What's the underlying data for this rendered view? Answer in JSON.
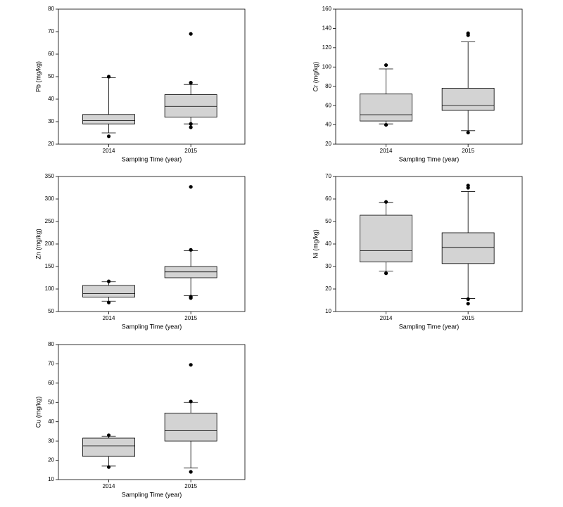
{
  "chart_data": [
    {
      "type": "box",
      "ylabel": "Pb (mg/kg)",
      "xlabel": "Sampling Time (year)",
      "categories": [
        "2014",
        "2015"
      ],
      "color": "#d3d3d3",
      "ylim": [
        20,
        80
      ],
      "yticks": [
        20,
        30,
        40,
        50,
        60,
        70,
        80
      ],
      "boxes": [
        {
          "whisker_low": 25,
          "q1": 29,
          "median": 30.5,
          "q3": 33.2,
          "whisker_high": 49.5,
          "outliers": [
            23.5,
            50
          ]
        },
        {
          "whisker_low": 29,
          "q1": 32,
          "median": 36.8,
          "q3": 42,
          "whisker_high": 46.5,
          "outliers": [
            27.5,
            29,
            47.3,
            69
          ]
        }
      ]
    },
    {
      "type": "box",
      "ylabel": "Cr (mg/kg)",
      "xlabel": "Sampling Time (year)",
      "categories": [
        "2014",
        "2015"
      ],
      "color": "#d3d3d3",
      "ylim": [
        20,
        160
      ],
      "yticks": [
        20,
        40,
        60,
        80,
        100,
        120,
        140,
        160
      ],
      "boxes": [
        {
          "whisker_low": 41,
          "q1": 44,
          "median": 50.5,
          "q3": 72,
          "whisker_high": 98,
          "outliers": [
            40,
            102
          ]
        },
        {
          "whisker_low": 34,
          "q1": 55,
          "median": 60,
          "q3": 78,
          "whisker_high": 126,
          "outliers": [
            32,
            133,
            135
          ]
        }
      ]
    },
    {
      "type": "box",
      "ylabel": "Zn (mg/kg)",
      "xlabel": "Sampling Time (year)",
      "categories": [
        "2014",
        "2015"
      ],
      "color": "#d3d3d3",
      "ylim": [
        50,
        350
      ],
      "yticks": [
        50,
        100,
        150,
        200,
        250,
        300,
        350
      ],
      "boxes": [
        {
          "whisker_low": 73,
          "q1": 82,
          "median": 90,
          "q3": 108,
          "whisker_high": 116,
          "outliers": [
            70,
            117
          ]
        },
        {
          "whisker_low": 85,
          "q1": 125,
          "median": 138,
          "q3": 150,
          "whisker_high": 185,
          "outliers": [
            80,
            83,
            187,
            327
          ]
        }
      ]
    },
    {
      "type": "box",
      "ylabel": "Ni (mg/kg)",
      "xlabel": "Sampling Time (year)",
      "categories": [
        "2014",
        "2015"
      ],
      "color": "#d3d3d3",
      "ylim": [
        10,
        70
      ],
      "yticks": [
        10,
        20,
        30,
        40,
        50,
        60,
        70
      ],
      "boxes": [
        {
          "whisker_low": 28,
          "q1": 32,
          "median": 37,
          "q3": 52.8,
          "whisker_high": 58.5,
          "outliers": [
            27,
            58.7
          ]
        },
        {
          "whisker_low": 15.8,
          "q1": 31.3,
          "median": 38.5,
          "q3": 45,
          "whisker_high": 63.3,
          "outliers": [
            13.5,
            15.5,
            65,
            66
          ]
        }
      ]
    },
    {
      "type": "box",
      "ylabel": "Cu (mg/kg)",
      "xlabel": "Sampling Time (year)",
      "categories": [
        "2014",
        "2015"
      ],
      "color": "#d3d3d3",
      "ylim": [
        10,
        80
      ],
      "yticks": [
        10,
        20,
        30,
        40,
        50,
        60,
        70,
        80
      ],
      "boxes": [
        {
          "whisker_low": 17,
          "q1": 22,
          "median": 27.5,
          "q3": 31.5,
          "whisker_high": 32.5,
          "outliers": [
            16.5,
            33
          ]
        },
        {
          "whisker_low": 16,
          "q1": 30,
          "median": 35.3,
          "q3": 44.5,
          "whisker_high": 50,
          "outliers": [
            14,
            50.5,
            69.5
          ]
        }
      ]
    }
  ]
}
